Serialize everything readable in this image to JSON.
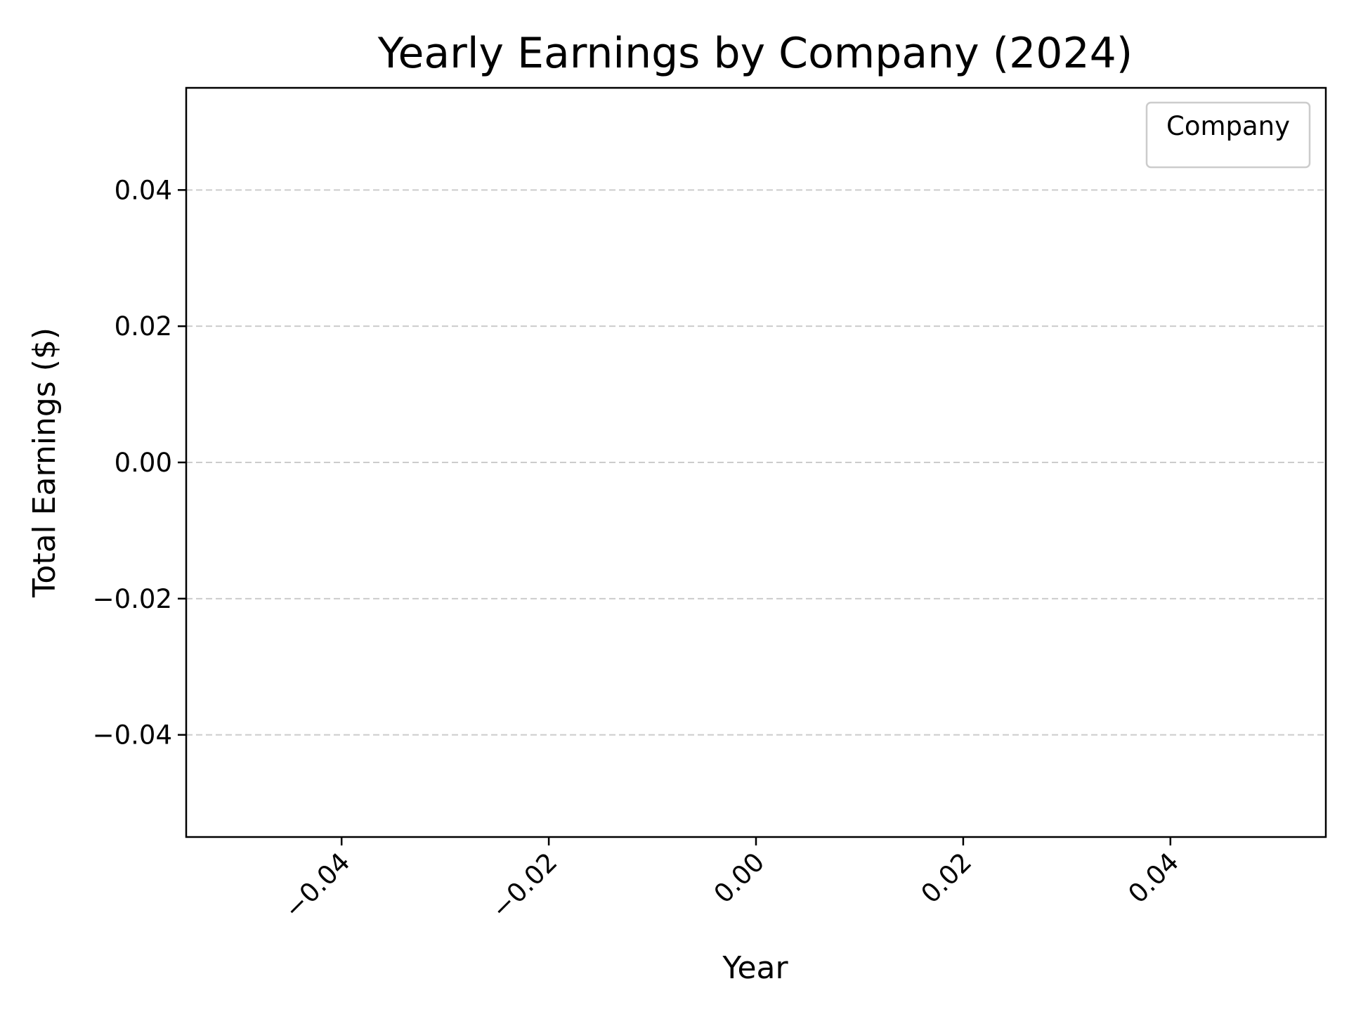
{
  "chart_data": {
    "type": "line",
    "title": "Yearly Earnings by Company (2024)",
    "xlabel": "Year",
    "ylabel": "Total Earnings ($)",
    "xlim": [
      -0.055,
      0.055
    ],
    "ylim": [
      -0.055,
      0.055
    ],
    "xticks": [
      -0.04,
      -0.02,
      0.0,
      0.02,
      0.04
    ],
    "xtick_labels": [
      "−0.04",
      "−0.02",
      "0.00",
      "0.02",
      "0.04"
    ],
    "yticks": [
      -0.04,
      -0.02,
      0.0,
      0.02,
      0.04
    ],
    "ytick_labels": [
      "−0.04",
      "−0.02",
      "0.00",
      "0.02",
      "0.04"
    ],
    "xtick_rotation": 45,
    "grid": {
      "axis": "y",
      "style": "dashed",
      "color": "#cccccc"
    },
    "legend": {
      "title": "Company",
      "placement": "top-right",
      "entries": []
    },
    "series": []
  }
}
